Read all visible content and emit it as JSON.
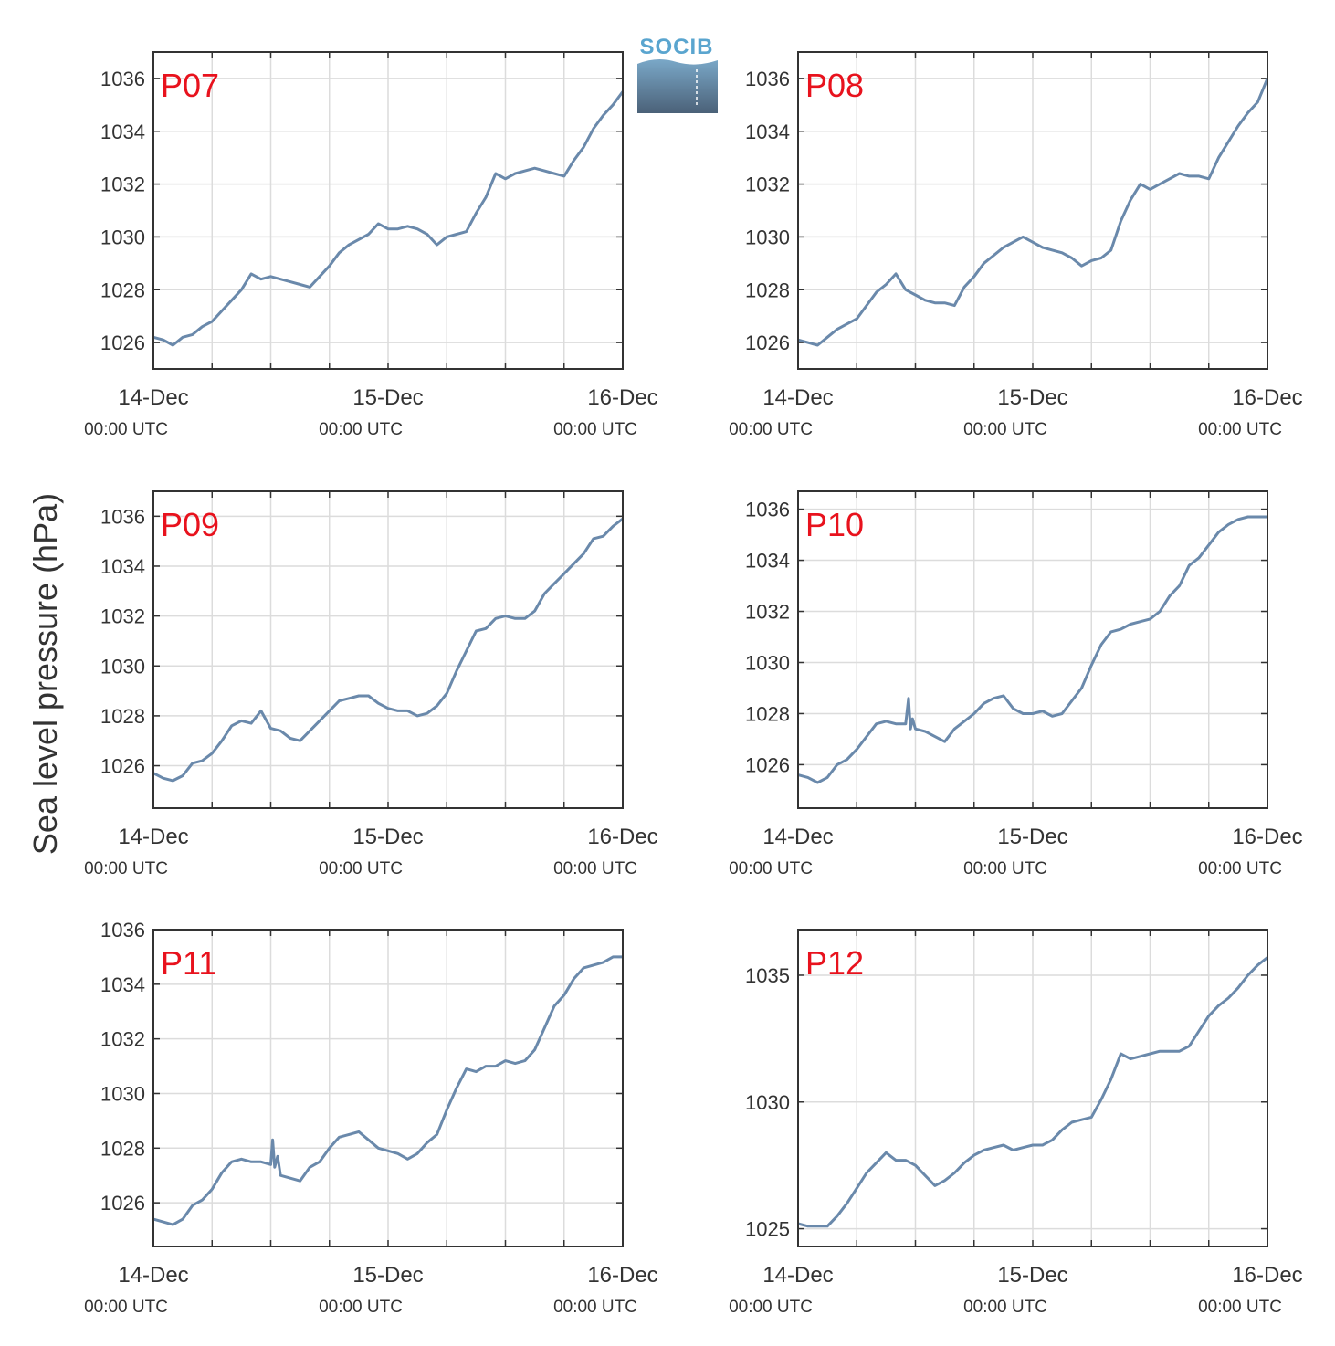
{
  "logo": {
    "text": "SOCIB"
  },
  "ylabel": "Sea level pressure (hPa)",
  "colors": {
    "line": "#6a89ab",
    "grid": "#dcdcdc",
    "axis": "#333333",
    "label": "#e8121d"
  },
  "x_ticks": [
    {
      "line1": "14-Dec",
      "line2": "00:00 UTC"
    },
    {
      "line1": "15-Dec",
      "line2": "00:00 UTC"
    },
    {
      "line1": "16-Dec",
      "line2": "00:00 UTC"
    }
  ],
  "chart_data": [
    {
      "type": "line",
      "label": "P07",
      "xlim": [
        0,
        48
      ],
      "ylim": [
        1025.0,
        1037.0
      ],
      "yticks": [
        1026,
        1028,
        1030,
        1032,
        1034,
        1036
      ],
      "x": [
        0,
        1,
        2,
        3,
        4,
        5,
        6,
        7,
        8,
        9,
        10,
        11,
        12,
        13,
        14,
        15,
        16,
        17,
        18,
        19,
        20,
        21,
        22,
        23,
        24,
        25,
        26,
        27,
        28,
        29,
        30,
        31,
        32,
        33,
        34,
        35,
        36,
        37,
        38,
        39,
        40,
        41,
        42,
        43,
        44,
        45,
        46,
        47,
        48
      ],
      "values": [
        1026.2,
        1026.1,
        1025.9,
        1026.2,
        1026.3,
        1026.6,
        1026.8,
        1027.2,
        1027.6,
        1028.0,
        1028.6,
        1028.4,
        1028.5,
        1028.4,
        1028.3,
        1028.2,
        1028.1,
        1028.5,
        1028.9,
        1029.4,
        1029.7,
        1029.9,
        1030.1,
        1030.5,
        1030.3,
        1030.3,
        1030.4,
        1030.3,
        1030.1,
        1029.7,
        1030.0,
        1030.1,
        1030.2,
        1030.9,
        1031.5,
        1032.4,
        1032.2,
        1032.4,
        1032.5,
        1032.6,
        1032.5,
        1032.4,
        1032.3,
        1032.9,
        1033.4,
        1034.1,
        1034.6,
        1035.0,
        1035.5
      ]
    },
    {
      "type": "line",
      "label": "P08",
      "xlim": [
        0,
        48
      ],
      "ylim": [
        1025.0,
        1037.0
      ],
      "yticks": [
        1026,
        1028,
        1030,
        1032,
        1034,
        1036
      ],
      "x": [
        0,
        1,
        2,
        3,
        4,
        5,
        6,
        7,
        8,
        9,
        10,
        11,
        12,
        13,
        14,
        15,
        16,
        17,
        18,
        19,
        20,
        21,
        22,
        23,
        24,
        25,
        26,
        27,
        28,
        29,
        30,
        31,
        32,
        33,
        34,
        35,
        36,
        37,
        38,
        39,
        40,
        41,
        42,
        43,
        44,
        45,
        46,
        47,
        48
      ],
      "values": [
        1026.1,
        1026.0,
        1025.9,
        1026.2,
        1026.5,
        1026.7,
        1026.9,
        1027.4,
        1027.9,
        1028.2,
        1028.6,
        1028.0,
        1027.8,
        1027.6,
        1027.5,
        1027.5,
        1027.4,
        1028.1,
        1028.5,
        1029.0,
        1029.3,
        1029.6,
        1029.8,
        1030.0,
        1029.8,
        1029.6,
        1029.5,
        1029.4,
        1029.2,
        1028.9,
        1029.1,
        1029.2,
        1029.5,
        1030.6,
        1031.4,
        1032.0,
        1031.8,
        1032.0,
        1032.2,
        1032.4,
        1032.3,
        1032.3,
        1032.2,
        1033.0,
        1033.6,
        1034.2,
        1034.7,
        1035.1,
        1036.0
      ]
    },
    {
      "type": "line",
      "label": "P09",
      "xlim": [
        0,
        48
      ],
      "ylim": [
        1024.3,
        1037.0
      ],
      "yticks": [
        1026,
        1028,
        1030,
        1032,
        1034,
        1036
      ],
      "x": [
        0,
        1,
        2,
        3,
        4,
        5,
        6,
        7,
        8,
        9,
        10,
        11,
        12,
        13,
        14,
        15,
        16,
        17,
        18,
        19,
        20,
        21,
        22,
        23,
        24,
        25,
        26,
        27,
        28,
        29,
        30,
        31,
        32,
        33,
        34,
        35,
        36,
        37,
        38,
        39,
        40,
        41,
        42,
        43,
        44,
        45,
        46,
        47,
        48
      ],
      "values": [
        1025.7,
        1025.5,
        1025.4,
        1025.6,
        1026.1,
        1026.2,
        1026.5,
        1027.0,
        1027.6,
        1027.8,
        1027.7,
        1028.2,
        1027.5,
        1027.4,
        1027.1,
        1027.0,
        1027.4,
        1027.8,
        1028.2,
        1028.6,
        1028.7,
        1028.8,
        1028.8,
        1028.5,
        1028.3,
        1028.2,
        1028.2,
        1028.0,
        1028.1,
        1028.4,
        1028.9,
        1029.8,
        1030.6,
        1031.4,
        1031.5,
        1031.9,
        1032.0,
        1031.9,
        1031.9,
        1032.2,
        1032.9,
        1033.3,
        1033.7,
        1034.1,
        1034.5,
        1035.1,
        1035.2,
        1035.6,
        1035.9
      ]
    },
    {
      "type": "line",
      "label": "P10",
      "xlim": [
        0,
        48
      ],
      "ylim": [
        1024.3,
        1036.7
      ],
      "yticks": [
        1026,
        1028,
        1030,
        1032,
        1034,
        1036
      ],
      "x": [
        0,
        1,
        2,
        3,
        4,
        5,
        6,
        7,
        8,
        9,
        10,
        11,
        11.3,
        11.5,
        11.7,
        12,
        13,
        14,
        15,
        16,
        17,
        18,
        19,
        20,
        21,
        22,
        23,
        24,
        25,
        26,
        27,
        28,
        29,
        30,
        31,
        32,
        33,
        34,
        35,
        36,
        37,
        38,
        39,
        40,
        41,
        42,
        43,
        44,
        45,
        46,
        47,
        48
      ],
      "values": [
        1025.6,
        1025.5,
        1025.3,
        1025.5,
        1026.0,
        1026.2,
        1026.6,
        1027.1,
        1027.6,
        1027.7,
        1027.6,
        1027.6,
        1028.6,
        1027.4,
        1027.8,
        1027.4,
        1027.3,
        1027.1,
        1026.9,
        1027.4,
        1027.7,
        1028.0,
        1028.4,
        1028.6,
        1028.7,
        1028.2,
        1028.0,
        1028.0,
        1028.1,
        1027.9,
        1028.0,
        1028.5,
        1029.0,
        1029.9,
        1030.7,
        1031.2,
        1031.3,
        1031.5,
        1031.6,
        1031.7,
        1032.0,
        1032.6,
        1033.0,
        1033.8,
        1034.1,
        1034.6,
        1035.1,
        1035.4,
        1035.6,
        1035.7,
        1035.7,
        1035.7
      ]
    },
    {
      "type": "line",
      "label": "P11",
      "xlim": [
        0,
        48
      ],
      "ylim": [
        1024.4,
        1036.0
      ],
      "yticks": [
        1026,
        1028,
        1030,
        1032,
        1034,
        1036
      ],
      "x": [
        0,
        1,
        2,
        3,
        4,
        5,
        6,
        7,
        8,
        9,
        10,
        11,
        12,
        12.2,
        12.4,
        12.7,
        13,
        14,
        15,
        16,
        17,
        18,
        19,
        20,
        21,
        22,
        23,
        24,
        25,
        26,
        27,
        28,
        29,
        30,
        31,
        32,
        33,
        34,
        35,
        36,
        37,
        38,
        39,
        40,
        41,
        42,
        43,
        44,
        45,
        46,
        47,
        48
      ],
      "values": [
        1025.4,
        1025.3,
        1025.2,
        1025.4,
        1025.9,
        1026.1,
        1026.5,
        1027.1,
        1027.5,
        1027.6,
        1027.5,
        1027.5,
        1027.4,
        1028.3,
        1027.3,
        1027.7,
        1027.0,
        1026.9,
        1026.8,
        1027.3,
        1027.5,
        1028.0,
        1028.4,
        1028.5,
        1028.6,
        1028.3,
        1028.0,
        1027.9,
        1027.8,
        1027.6,
        1027.8,
        1028.2,
        1028.5,
        1029.4,
        1030.2,
        1030.9,
        1030.8,
        1031.0,
        1031.0,
        1031.2,
        1031.1,
        1031.2,
        1031.6,
        1032.4,
        1033.2,
        1033.6,
        1034.2,
        1034.6,
        1034.7,
        1034.8,
        1035.0,
        1035.0
      ]
    },
    {
      "type": "line",
      "label": "P12",
      "xlim": [
        0,
        48
      ],
      "ylim": [
        1024.3,
        1036.8
      ],
      "yticks": [
        1025,
        1030,
        1035
      ],
      "x": [
        0,
        1,
        2,
        3,
        4,
        5,
        6,
        7,
        8,
        9,
        10,
        11,
        12,
        13,
        14,
        15,
        16,
        17,
        18,
        19,
        20,
        21,
        22,
        23,
        24,
        25,
        26,
        27,
        28,
        29,
        30,
        31,
        32,
        33,
        34,
        35,
        36,
        37,
        38,
        39,
        40,
        41,
        42,
        43,
        44,
        45,
        46,
        47,
        48
      ],
      "values": [
        1025.2,
        1025.1,
        1025.1,
        1025.1,
        1025.5,
        1026.0,
        1026.6,
        1027.2,
        1027.6,
        1028.0,
        1027.7,
        1027.7,
        1027.5,
        1027.1,
        1026.7,
        1026.9,
        1027.2,
        1027.6,
        1027.9,
        1028.1,
        1028.2,
        1028.3,
        1028.1,
        1028.2,
        1028.3,
        1028.3,
        1028.5,
        1028.9,
        1029.2,
        1029.3,
        1029.4,
        1030.1,
        1030.9,
        1031.9,
        1031.7,
        1031.8,
        1031.9,
        1032.0,
        1032.0,
        1032.0,
        1032.2,
        1032.8,
        1033.4,
        1033.8,
        1034.1,
        1034.5,
        1035.0,
        1035.4,
        1035.7
      ]
    }
  ]
}
